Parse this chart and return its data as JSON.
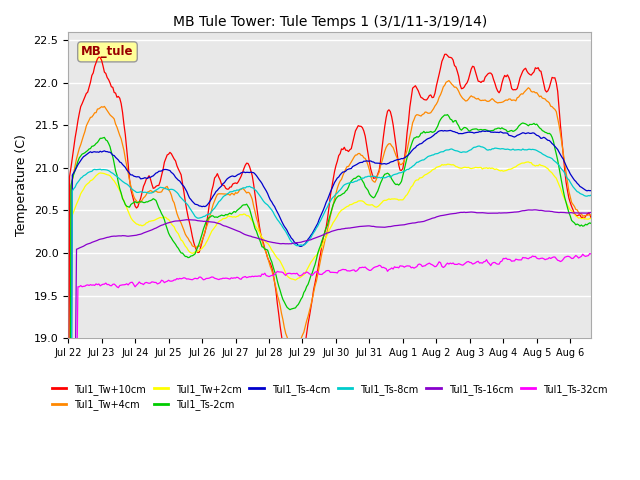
{
  "title": "MB Tule Tower: Tule Temps 1 (3/1/11-3/19/14)",
  "ylabel": "Temperature (C)",
  "ylim": [
    19.0,
    22.6
  ],
  "yticks": [
    19.0,
    19.5,
    20.0,
    20.5,
    21.0,
    21.5,
    22.0,
    22.5
  ],
  "background_color": "#ffffff",
  "plot_bg_color": "#e8e8e8",
  "grid_color": "#ffffff",
  "series": [
    {
      "label": "Tul1_Tw+10cm",
      "color": "#ff0000"
    },
    {
      "label": "Tul1_Tw+4cm",
      "color": "#ff8800"
    },
    {
      "label": "Tul1_Tw+2cm",
      "color": "#ffff00"
    },
    {
      "label": "Tul1_Ts-2cm",
      "color": "#00cc00"
    },
    {
      "label": "Tul1_Ts-4cm",
      "color": "#0000cc"
    },
    {
      "label": "Tul1_Ts-8cm",
      "color": "#00cccc"
    },
    {
      "label": "Tul1_Ts-16cm",
      "color": "#8800cc"
    },
    {
      "label": "Tul1_Ts-32cm",
      "color": "#ff00ff"
    }
  ],
  "xtick_labels": [
    "Jul 22",
    "Jul 23",
    "Jul 24",
    "Jul 25",
    "Jul 26",
    "Jul 27",
    "Jul 28",
    "Jul 29",
    "Jul 30",
    "Jul 31",
    "Aug 1",
    "Aug 2",
    "Aug 3",
    "Aug 4",
    "Aug 5",
    "Aug 6"
  ],
  "xtick_positions": [
    0,
    24,
    48,
    72,
    96,
    120,
    144,
    168,
    192,
    216,
    240,
    264,
    288,
    312,
    336,
    360
  ],
  "n_hours": 384,
  "inset_label": "MB_tule",
  "inset_color": "#990000",
  "inset_bg": "#ffff99"
}
